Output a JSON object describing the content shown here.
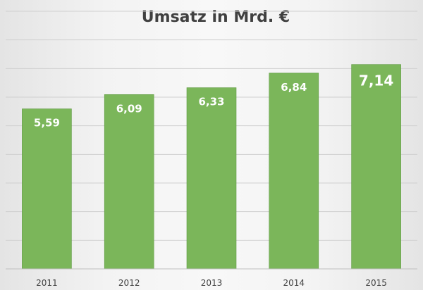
{
  "chart_data": {
    "type": "bar",
    "title": "Umsatz in Mrd.  €",
    "categories": [
      "2011",
      "2012",
      "2013",
      "2014",
      "2015"
    ],
    "values": [
      5.59,
      6.09,
      6.33,
      6.84,
      7.14
    ],
    "data_labels": [
      "5,59",
      "6,09",
      "6,33",
      "6,84",
      "7,14"
    ],
    "xlabel": "",
    "ylabel": "",
    "ylim": [
      0,
      9
    ],
    "grid": true,
    "legend": "none",
    "bar_color": "#7bb65a",
    "bar_border_color": "#5e9a40",
    "gridline_color": "#d0d0d0",
    "axis_color": "#bfbfbf",
    "text_color": "#404040"
  }
}
